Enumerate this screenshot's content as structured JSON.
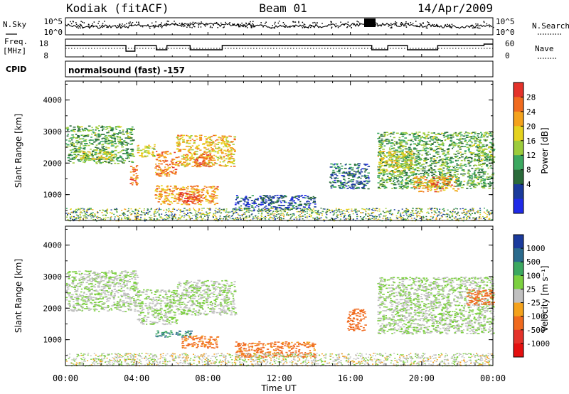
{
  "header": {
    "station": "Kodiak (fitACF)",
    "beam": "Beam 01",
    "date": "14/Apr/2009"
  },
  "status_panels": {
    "nsky_label": "N.Sky",
    "nsearch_label": "N.Search",
    "freq_label_line1": "Freq.",
    "freq_label_line2": "[MHz]",
    "nave_label": "Nave",
    "cpid_label": "CPID",
    "cpid_value": "normalsound (fast) -157",
    "noise_left_ticks": [
      "10^5",
      "10^0"
    ],
    "noise_right_ticks": [
      "10^5",
      "10^0"
    ],
    "freq_ticks": [
      "18",
      "8"
    ],
    "nave_ticks": [
      "60",
      "0"
    ]
  },
  "chart_data": [
    {
      "type": "heatmap",
      "xlabel": "Time UT",
      "ylabel": "Slant Range [km]",
      "xlim": [
        0,
        24
      ],
      "ylim": [
        180,
        4600
      ],
      "x_ticks": [
        "00:00",
        "04:00",
        "08:00",
        "12:00",
        "16:00",
        "20:00",
        "00:00"
      ],
      "y_ticks": [
        1000,
        2000,
        3000,
        4000
      ],
      "colorbar": {
        "label": "Power [dB]",
        "ticks": [
          "28",
          "24",
          "20",
          "16",
          "12",
          "8",
          "4"
        ],
        "colors": [
          "#e4322a",
          "#f06a1e",
          "#f4a21c",
          "#e5d21e",
          "#9ccc3c",
          "#3ca860",
          "#2a6a3a",
          "#1a3a9c",
          "#1f2ae8"
        ]
      },
      "regions": [
        {
          "t0": 0.0,
          "t1": 3.8,
          "r0": 2000,
          "r1": 3200,
          "level": 12
        },
        {
          "t0": 0.8,
          "t1": 2.6,
          "r0": 2100,
          "r1": 2400,
          "level": 16
        },
        {
          "t0": 3.6,
          "t1": 4.0,
          "r0": 1300,
          "r1": 2000,
          "level": 24
        },
        {
          "t0": 4.0,
          "t1": 5.0,
          "r0": 2200,
          "r1": 2600,
          "level": 18
        },
        {
          "t0": 5.0,
          "t1": 6.2,
          "r0": 1600,
          "r1": 2400,
          "level": 24
        },
        {
          "t0": 5.0,
          "t1": 8.5,
          "r0": 700,
          "r1": 1300,
          "level": 22
        },
        {
          "t0": 6.3,
          "t1": 7.5,
          "r0": 750,
          "r1": 1100,
          "level": 28
        },
        {
          "t0": 6.2,
          "t1": 9.5,
          "r0": 1900,
          "r1": 2900,
          "level": 20
        },
        {
          "t0": 7.2,
          "t1": 8.2,
          "r0": 1900,
          "r1": 2300,
          "level": 26
        },
        {
          "t0": 9.5,
          "t1": 14.0,
          "r0": 500,
          "r1": 1000,
          "level": 6
        },
        {
          "t0": 14.8,
          "t1": 17.0,
          "r0": 1200,
          "r1": 2000,
          "level": 8
        },
        {
          "t0": 17.5,
          "t1": 24.0,
          "r0": 1200,
          "r1": 3000,
          "level": 12
        },
        {
          "t0": 17.5,
          "t1": 19.5,
          "r0": 1700,
          "r1": 2400,
          "level": 18
        },
        {
          "t0": 19.5,
          "t1": 22.0,
          "r0": 1100,
          "r1": 1600,
          "level": 22
        },
        {
          "t0": 23.0,
          "t1": 24.0,
          "r0": 2100,
          "r1": 2600,
          "level": 14
        }
      ]
    },
    {
      "type": "heatmap",
      "xlabel": "Time UT",
      "ylabel": "Slant Range [km]",
      "xlim": [
        0,
        24
      ],
      "ylim": [
        180,
        4600
      ],
      "x_ticks": [
        "00:00",
        "04:00",
        "08:00",
        "12:00",
        "16:00",
        "20:00",
        "00:00"
      ],
      "y_ticks": [
        1000,
        2000,
        3000,
        4000
      ],
      "colorbar": {
        "label": "Velocity [m s⁻¹]",
        "ticks": [
          "1000",
          "500",
          "100",
          "25",
          "-25",
          "-100",
          "-500",
          "-1000"
        ],
        "colors": [
          "#1a3a9c",
          "#2a6a8c",
          "#3ca860",
          "#7cd040",
          "#c0c0c0",
          "#f4a21c",
          "#f06a1e",
          "#e4322a",
          "#e40f0f"
        ]
      },
      "regions": [
        {
          "t0": 0.0,
          "t1": 4.0,
          "r0": 1900,
          "r1": 3200,
          "level": 0
        },
        {
          "t0": 4.0,
          "t1": 6.2,
          "r0": 1500,
          "r1": 2600,
          "level": 0
        },
        {
          "t0": 5.0,
          "t1": 7.0,
          "r0": 1100,
          "r1": 1300,
          "level": 100
        },
        {
          "t0": 6.5,
          "t1": 8.5,
          "r0": 750,
          "r1": 1150,
          "level": -150
        },
        {
          "t0": 6.2,
          "t1": 9.5,
          "r0": 1800,
          "r1": 2900,
          "level": 0
        },
        {
          "t0": 9.5,
          "t1": 14.0,
          "r0": 450,
          "r1": 950,
          "level": -150
        },
        {
          "t0": 15.8,
          "t1": 16.8,
          "r0": 1300,
          "r1": 2000,
          "level": -200
        },
        {
          "t0": 17.5,
          "t1": 24.0,
          "r0": 1200,
          "r1": 3000,
          "level": 0
        },
        {
          "t0": 22.5,
          "t1": 24.0,
          "r0": 2100,
          "r1": 2600,
          "level": -200
        }
      ]
    }
  ]
}
